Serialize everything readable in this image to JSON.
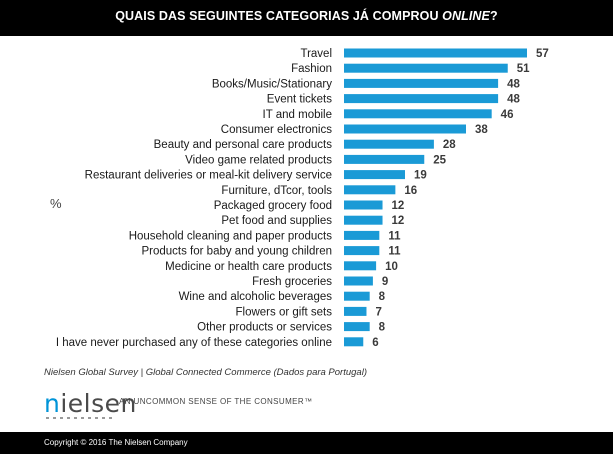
{
  "header": {
    "title_main": "QUAIS DAS SEGUINTES CATEGORIAS JÁ COMPROU",
    "title_italic": "ONLINE",
    "title_end": "?"
  },
  "unit_label": "%",
  "source": "Nielsen Global Survey | Global Connected Commerce (Dados para Portugal)",
  "brand": {
    "name_first": "n",
    "name_rest": "ielsen",
    "tagline": "AN UNCOMMON SENSE OF THE CONSUMER™"
  },
  "footer": {
    "copyright": "Copyright © 2016 The Nielsen Company"
  },
  "colors": {
    "bar": "#1a9ad6",
    "label": "#1a1a1a",
    "value": "#3a3a3a"
  },
  "chart_data": {
    "type": "bar",
    "orientation": "horizontal",
    "categories": [
      "Travel",
      "Fashion",
      "Books/Music/Stationary",
      "Event tickets",
      "IT and mobile",
      "Consumer electronics",
      "Beauty and personal care products",
      "Video game related products",
      "Restaurant deliveries or meal-kit delivery service",
      "Furniture, dTcor, tools",
      "Packaged grocery food",
      "Pet food and supplies",
      "Household cleaning and paper products",
      "Products for baby and young children",
      "Medicine or health care products",
      "Fresh groceries",
      "Wine and alcoholic beverages",
      "Flowers or gift sets",
      "Other products or services",
      "I have never purchased any of these categories online"
    ],
    "values": [
      57,
      51,
      48,
      48,
      46,
      38,
      28,
      25,
      19,
      16,
      12,
      12,
      11,
      11,
      10,
      9,
      8,
      7,
      8,
      6
    ],
    "xlim": [
      0,
      57
    ]
  }
}
